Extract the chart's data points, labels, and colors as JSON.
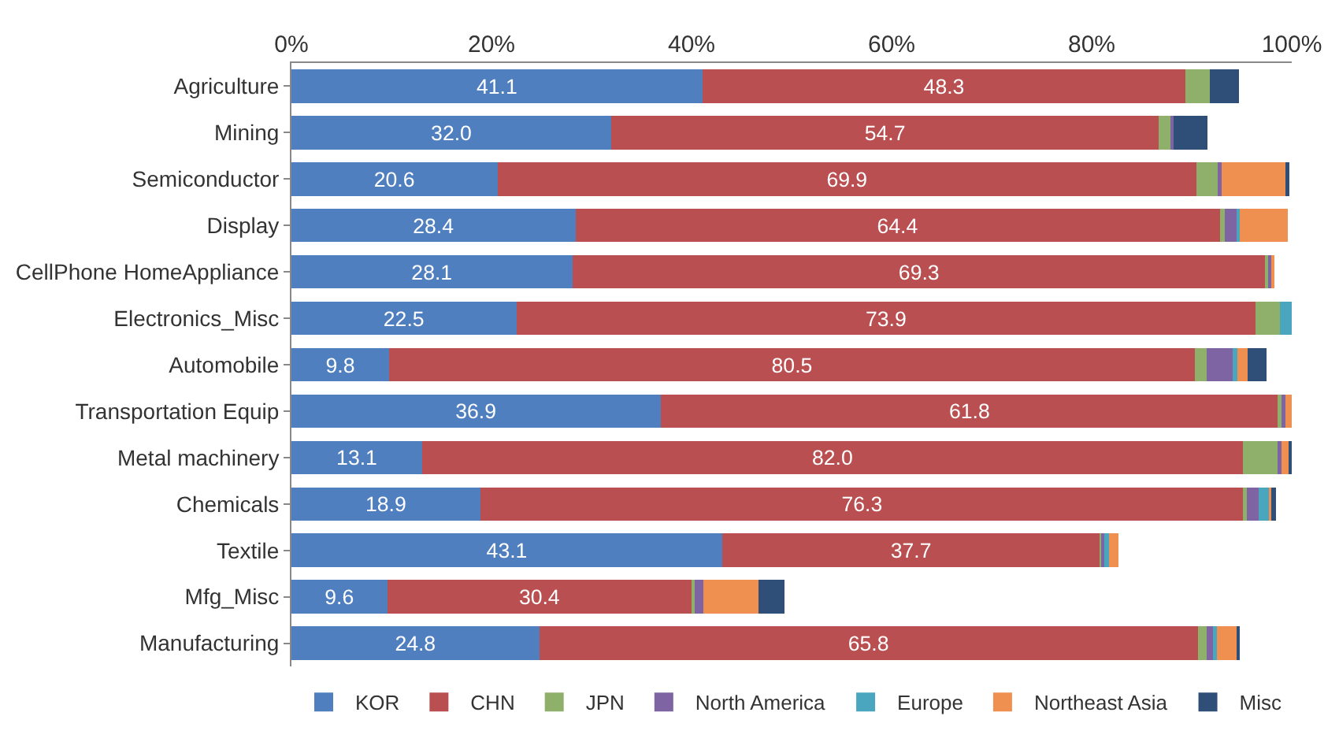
{
  "chart_data": {
    "type": "bar",
    "orientation": "horizontal",
    "stacked": true,
    "categories": [
      "Agriculture",
      "Mining",
      "Semiconductor",
      "Display",
      "CellPhone HomeAppliance",
      "Electronics_Misc",
      "Automobile",
      "Transportation Equip",
      "Metal machinery",
      "Chemicals",
      "Textile",
      "Mfg_Misc",
      "Manufacturing"
    ],
    "series": [
      {
        "name": "KOR",
        "color": "#4f7fbf",
        "values": [
          41.1,
          32.0,
          20.6,
          28.4,
          28.1,
          22.5,
          9.8,
          36.9,
          13.1,
          18.9,
          43.1,
          9.6,
          24.8
        ],
        "value_labels": [
          "41.1",
          "32.0",
          "20.6",
          "28.4",
          "28.1",
          "22.5",
          "9.8",
          "36.9",
          "13.1",
          "18.9",
          "43.1",
          "9.6",
          "24.8"
        ]
      },
      {
        "name": "CHN",
        "color": "#b94f51",
        "values": [
          48.3,
          54.7,
          69.9,
          64.4,
          69.3,
          73.9,
          80.5,
          61.8,
          82.0,
          76.3,
          37.7,
          30.4,
          65.8
        ],
        "value_labels": [
          "48.3",
          "54.7",
          "69.9",
          "64.4",
          "69.3",
          "73.9",
          "80.5",
          "61.8",
          "82.0",
          "76.3",
          "37.7",
          "30.4",
          "65.8"
        ]
      },
      {
        "name": "JPN",
        "color": "#8fb06a",
        "values": [
          2.4,
          1.2,
          2.2,
          0.5,
          0.3,
          2.4,
          1.2,
          0.3,
          3.6,
          0.3,
          0.3,
          0.3,
          0.9
        ]
      },
      {
        "name": "North America",
        "color": "#7e64a2",
        "values": [
          0,
          0.3,
          0.3,
          1.2,
          0.3,
          0,
          2.6,
          0.4,
          0.3,
          1.2,
          0.3,
          0.9,
          0.7
        ]
      },
      {
        "name": "Europe",
        "color": "#4aa5bf",
        "values": [
          0,
          0,
          0,
          0.3,
          0,
          1.3,
          0.5,
          0,
          0,
          1.0,
          0.3,
          0,
          0.3
        ]
      },
      {
        "name": "Northeast Asia",
        "color": "#ef8f50",
        "values": [
          0,
          0,
          6.5,
          4.8,
          0.3,
          0,
          1.0,
          0.6,
          0.7,
          0.4,
          1.0,
          5.5,
          2.0
        ]
      },
      {
        "name": "Misc",
        "color": "#2f4e78",
        "values": [
          2.9,
          3.4,
          0.3,
          0,
          0,
          0,
          1.9,
          0,
          0.3,
          0.3,
          0,
          2.6,
          0.3
        ]
      }
    ],
    "xlim": [
      0,
      100
    ],
    "xticks": [
      {
        "value": 0,
        "label": "0%"
      },
      {
        "value": 20,
        "label": "20%"
      },
      {
        "value": 40,
        "label": "40%"
      },
      {
        "value": 60,
        "label": "60%"
      },
      {
        "value": 80,
        "label": "80%"
      },
      {
        "value": 100,
        "label": "100%"
      }
    ],
    "legend": "bottom"
  }
}
